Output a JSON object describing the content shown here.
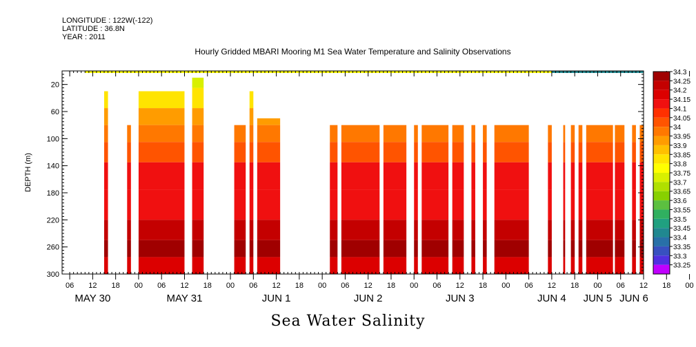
{
  "header": {
    "longitude": "LONGITUDE : 122W(-122)",
    "latitude": "LATITUDE : 36.8N",
    "year": "YEAR : 2011",
    "title": "Hourly Gridded MBARI Mooring M1 Sea Water Temperature and Salinity Observations"
  },
  "chart_data": {
    "type": "heatmap",
    "title": "Hourly Gridded MBARI Mooring M1 Sea Water Temperature and Salinity Observations",
    "xlabel": "Sea Water Salinity",
    "ylabel": "DEPTH (m)",
    "ylim": [
      0,
      300
    ],
    "y_inverted": true,
    "y_ticks": [
      20,
      60,
      100,
      140,
      180,
      220,
      260,
      300
    ],
    "x_tick_labels": [
      "06",
      "12",
      "18",
      "00",
      "06",
      "12",
      "18",
      "00",
      "06",
      "12",
      "18",
      "00",
      "06",
      "12",
      "18",
      "00",
      "06",
      "12",
      "18",
      "00",
      "06",
      "12",
      "18",
      "00",
      "06",
      "12",
      "18",
      "00"
    ],
    "x_day_labels": [
      "MAY 30",
      "MAY 31",
      "JUN  1",
      "JUN  2",
      "JUN  3",
      "JUN  4",
      "JUN  5",
      "JUN  6"
    ],
    "colorbar_levels": [
      "34.3",
      "34.25",
      "34.2",
      "34.15",
      "34.1",
      "34.05",
      "34",
      "33.95",
      "33.9",
      "33.85",
      "33.8",
      "33.75",
      "33.7",
      "33.65",
      "33.6",
      "33.55",
      "33.5",
      "33.45",
      "33.4",
      "33.35",
      "33.3",
      "33.25"
    ],
    "colorbar_colors": [
      "#a00000",
      "#c40000",
      "#dc0000",
      "#f01010",
      "#ff3000",
      "#ff5400",
      "#ff7800",
      "#ff9c00",
      "#ffc000",
      "#ffe400",
      "#ffff00",
      "#d8f000",
      "#b0e000",
      "#88d000",
      "#5cc040",
      "#30b060",
      "#20a080",
      "#208890",
      "#2870a8",
      "#3850c0",
      "#5030e0",
      "#c000ff"
    ],
    "depth_profile_note": "salinity increases with depth: ~33.8-33.9 near 10 m, ~34.0-34.05 at 80-120 m, ~34.1-34.15 at 140-220 m, ~34.25-34.3 at 240-300 m",
    "depth_profile": [
      {
        "depth": 10,
        "salinity": 33.75
      },
      {
        "depth": 40,
        "salinity": 33.85
      },
      {
        "depth": 70,
        "salinity": 33.95
      },
      {
        "depth": 90,
        "salinity": 34.0
      },
      {
        "depth": 120,
        "salinity": 34.05
      },
      {
        "depth": 150,
        "salinity": 34.15
      },
      {
        "depth": 200,
        "salinity": 34.15
      },
      {
        "depth": 240,
        "salinity": 34.25
      },
      {
        "depth": 260,
        "salinity": 34.3
      },
      {
        "depth": 290,
        "salinity": 34.2
      }
    ],
    "surface_row_depth": 10,
    "surface_salinity_late_jun4_to_jun6": 33.45,
    "shallow_coverage": [
      {
        "from_hour": 11,
        "to_hour": 12,
        "top_depth": 30
      },
      {
        "from_hour": 18,
        "to_hour": 21,
        "top_depth": 30
      },
      {
        "from_hour": 21,
        "to_hour": 32,
        "top_depth": 30
      },
      {
        "from_hour": 32,
        "to_hour": 38,
        "top_depth": 10
      },
      {
        "from_hour": 38,
        "to_hour": 41,
        "top_depth": 20
      },
      {
        "from_hour": 44,
        "to_hour": 45,
        "top_depth": 10
      },
      {
        "from_hour": 46,
        "to_hour": 50,
        "top_depth": 30
      },
      {
        "from_hour": 50,
        "to_hour": 57,
        "top_depth": 70
      }
    ],
    "data_blocks_hours": [
      [
        11,
        12
      ],
      [
        17,
        18
      ],
      [
        20,
        32
      ],
      [
        34,
        37
      ],
      [
        45,
        48
      ],
      [
        49,
        50
      ],
      [
        51,
        57
      ],
      [
        70,
        72
      ],
      [
        73,
        83
      ],
      [
        84,
        90
      ],
      [
        92,
        93
      ],
      [
        94,
        101
      ],
      [
        102,
        105
      ],
      [
        107,
        108
      ],
      [
        110,
        111
      ],
      [
        113,
        122
      ],
      [
        127,
        128
      ],
      [
        131,
        131.5
      ],
      [
        133,
        134
      ],
      [
        135,
        136
      ],
      [
        137,
        144
      ],
      [
        144.5,
        147
      ],
      [
        149,
        150
      ],
      [
        151,
        152
      ]
    ],
    "x_range_hours": [
      0,
      152
    ]
  }
}
